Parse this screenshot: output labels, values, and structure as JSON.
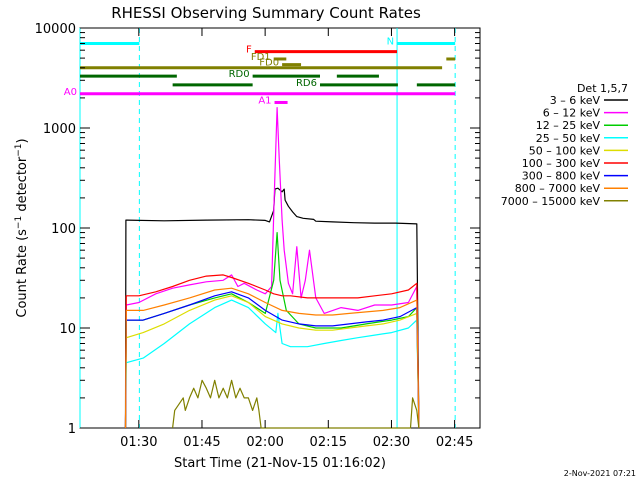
{
  "chart_data": {
    "type": "line",
    "title": "RHESSI Observing Summary Count Rates",
    "xlabel": "Start Time (21-Nov-15 01:16:02)",
    "ylabel_main": "Count Rate (s",
    "ylabel_sup1": "−1",
    "ylabel_mid": " detector",
    "ylabel_sup2": "−1",
    "ylabel_end": ")",
    "footer": "2-Nov-2021 07:21",
    "x_axis": {
      "unit": "minutes since 01:16:02",
      "range": [
        0,
        95
      ],
      "ticks": [
        {
          "label": "01:30",
          "value": 13.97
        },
        {
          "label": "01:45",
          "value": 28.97
        },
        {
          "label": "02:00",
          "value": 43.97
        },
        {
          "label": "02:15",
          "value": 58.97
        },
        {
          "label": "02:30",
          "value": 73.97
        },
        {
          "label": "02:45",
          "value": 88.97
        }
      ]
    },
    "y_axis": {
      "scale": "log",
      "range": [
        1,
        10000
      ],
      "ticks": [
        {
          "label": "1",
          "value": 1
        },
        {
          "label": "10",
          "value": 10
        },
        {
          "label": "100",
          "value": 100
        },
        {
          "label": "1000",
          "value": 1000
        },
        {
          "label": "10000",
          "value": 10000
        }
      ]
    },
    "legend": {
      "title": "Det 1,5,7",
      "placement": "right",
      "entries": [
        {
          "label": "3 – 6 keV",
          "color": "#000000"
        },
        {
          "label": "6 – 12 keV",
          "color": "#ff00ff"
        },
        {
          "label": "12 – 25 keV",
          "color": "#00cc00"
        },
        {
          "label": "25 – 50 keV",
          "color": "#00ffff"
        },
        {
          "label": "50 – 100 keV",
          "color": "#dddd00"
        },
        {
          "label": "100 – 300 keV",
          "color": "#ff0000"
        },
        {
          "label": "300 – 800 keV",
          "color": "#0000ff"
        },
        {
          "label": "800 – 7000 keV",
          "color": "#ff8000"
        },
        {
          "label": "7000 – 15000 keV",
          "color": "#808000"
        }
      ]
    },
    "vertical_lines": [
      {
        "x": 0.0,
        "color": "#00ffff",
        "style": "solid"
      },
      {
        "x": 14.1,
        "color": "#00ffff",
        "style": "dashed"
      },
      {
        "x": 75.3,
        "color": "#00ffff",
        "style": "solid"
      },
      {
        "x": 89.1,
        "color": "#00ffff",
        "style": "dashed"
      }
    ],
    "flag_bars": [
      {
        "label": "N",
        "color": "#00ffff",
        "y": 7000,
        "segments": [
          [
            0,
            14.1
          ],
          [
            75.3,
            89.1
          ]
        ]
      },
      {
        "label": "F",
        "color": "#ff0000",
        "y": 5800,
        "segments": [
          [
            41.5,
            75.3
          ]
        ]
      },
      {
        "label": "FD1",
        "color": "#808000",
        "y": 4900,
        "segments": [
          [
            46,
            49
          ]
        ]
      },
      {
        "label": "FD0",
        "color": "#808000",
        "y": 4300,
        "segments": [
          [
            48,
            52.5
          ]
        ]
      },
      {
        "label": "",
        "color": "#808000",
        "y": 4900,
        "segments": [
          [
            87,
            89.1
          ]
        ]
      },
      {
        "label": "",
        "color": "#808000",
        "y": 4000,
        "segments": [
          [
            0,
            86
          ]
        ]
      },
      {
        "label": "RD0",
        "color": "#006600",
        "y": 3300,
        "segments": [
          [
            0,
            23
          ],
          [
            41,
            57
          ],
          [
            61,
            71
          ]
        ]
      },
      {
        "label": "RD6",
        "color": "#006600",
        "y": 2700,
        "segments": [
          [
            22,
            41
          ],
          [
            57,
            75.5
          ],
          [
            80,
            89.1
          ]
        ]
      },
      {
        "label": "A0",
        "color": "#ff00ff",
        "y": 2200,
        "segments": [
          [
            0,
            89.1
          ]
        ]
      },
      {
        "label": "A1",
        "color": "#ff00ff",
        "y": 1800,
        "segments": [
          [
            46.2,
            49.3
          ]
        ]
      }
    ],
    "series": [
      {
        "name": "3 – 6 keV",
        "color": "#000000",
        "x": [
          10.8,
          10.9,
          20,
          30,
          40,
          44,
          45,
          46,
          46.3,
          47,
          48,
          48.5,
          48.7,
          49.5,
          50.5,
          51.5,
          53,
          55.5,
          56,
          60,
          65,
          70,
          75,
          80,
          80.5
        ],
        "y": [
          1,
          120,
          118,
          120,
          121,
          119,
          115,
          150,
          245,
          250,
          230,
          245,
          190,
          165,
          145,
          130,
          125,
          122,
          117,
          115,
          113,
          112,
          112,
          110,
          1
        ]
      },
      {
        "name": "6 – 12 keV",
        "color": "#ff00ff",
        "x": [
          10.8,
          11,
          14,
          18,
          22,
          26,
          30,
          34,
          36,
          37.5,
          39,
          42,
          44,
          45.5,
          46.2,
          46.8,
          47.3,
          48,
          48.5,
          49.5,
          50.5,
          51.5,
          52.5,
          53.5,
          54.5,
          56,
          58,
          62,
          66,
          70,
          74,
          78,
          80,
          80.5
        ],
        "y": [
          1,
          17,
          18,
          22,
          25,
          27,
          29,
          30,
          34,
          26,
          28,
          24,
          22,
          26,
          250,
          1600,
          500,
          120,
          60,
          28,
          22,
          65,
          20,
          30,
          60,
          20,
          14,
          16,
          15,
          17,
          17,
          18,
          26,
          1
        ]
      },
      {
        "name": "12 – 25 keV",
        "color": "#00cc00",
        "x": [
          10.8,
          11,
          15,
          20,
          26,
          32,
          36,
          40,
          44,
          46,
          46.8,
          47.5,
          49,
          52,
          56,
          62,
          68,
          74,
          78,
          80,
          80.5
        ],
        "y": [
          1,
          12,
          12,
          14,
          17,
          20,
          22,
          18,
          14,
          30,
          90,
          30,
          15,
          11,
          10,
          10,
          11,
          12,
          13,
          16,
          1
        ]
      },
      {
        "name": "25 – 50 keV",
        "color": "#00ffff",
        "x": [
          10.8,
          11,
          15,
          20,
          26,
          32,
          36,
          40,
          44,
          46.5,
          47,
          48,
          50,
          54,
          58,
          62,
          66,
          70,
          74,
          78,
          80,
          80.5
        ],
        "y": [
          1,
          4.5,
          5,
          7,
          11,
          16,
          19,
          16,
          11,
          9,
          14,
          7,
          6.5,
          6.5,
          7,
          7.5,
          8,
          8.5,
          9,
          10,
          12,
          1
        ]
      },
      {
        "name": "50 – 100 keV",
        "color": "#dddd00",
        "x": [
          10.8,
          11,
          15,
          20,
          26,
          32,
          36,
          40,
          44,
          48,
          52,
          56,
          60,
          64,
          68,
          72,
          76,
          80,
          80.5
        ],
        "y": [
          1,
          8,
          9,
          11,
          15,
          19,
          21,
          18,
          13,
          11,
          10,
          9.5,
          9.5,
          10,
          10.5,
          11,
          12,
          14,
          1
        ]
      },
      {
        "name": "100 – 300 keV",
        "color": "#ff0000",
        "x": [
          10.8,
          11,
          14,
          18,
          22,
          26,
          30,
          34,
          36,
          40,
          44,
          46,
          48,
          50,
          54,
          58,
          62,
          66,
          70,
          74,
          78,
          80,
          80.5
        ],
        "y": [
          1,
          21,
          21,
          23,
          26,
          30,
          33,
          34,
          32,
          28,
          24,
          22,
          21,
          21,
          20,
          20,
          20,
          20,
          21,
          22,
          24,
          28,
          1
        ]
      },
      {
        "name": "300 – 800 keV",
        "color": "#0000ff",
        "x": [
          10.8,
          11,
          15,
          20,
          26,
          32,
          36,
          40,
          44,
          48,
          52,
          56,
          60,
          64,
          68,
          72,
          76,
          80,
          80.5
        ],
        "y": [
          1,
          12,
          12,
          14,
          17,
          21,
          23,
          20,
          15,
          12,
          11,
          10.5,
          10.5,
          11,
          11.5,
          12,
          13,
          16,
          1
        ]
      },
      {
        "name": "800 – 7000 keV",
        "color": "#ff8000",
        "x": [
          10.8,
          11,
          15,
          20,
          26,
          32,
          36,
          40,
          44,
          48,
          52,
          56,
          60,
          64,
          68,
          72,
          76,
          80,
          80.5
        ],
        "y": [
          1,
          15,
          15,
          17,
          20,
          24,
          25,
          22,
          18,
          15,
          14,
          13.5,
          13.5,
          14,
          14.5,
          15,
          16,
          19,
          1
        ]
      },
      {
        "name": "7000 – 15000 keV",
        "color": "#808000",
        "x": [
          22,
          22.5,
          24.5,
          25,
          26,
          27,
          28,
          29,
          30,
          31,
          32,
          33,
          34,
          35,
          36,
          37,
          38,
          39,
          40,
          41,
          42,
          42.5,
          43,
          78.5,
          79,
          80,
          80.5
        ],
        "y": [
          1,
          1.5,
          2,
          1.5,
          2,
          2.5,
          2,
          3,
          2.5,
          2,
          3,
          2,
          2.5,
          2,
          3,
          2,
          2.5,
          2,
          2,
          1.5,
          2,
          1.5,
          1,
          1,
          2,
          1.5,
          1
        ]
      }
    ]
  }
}
